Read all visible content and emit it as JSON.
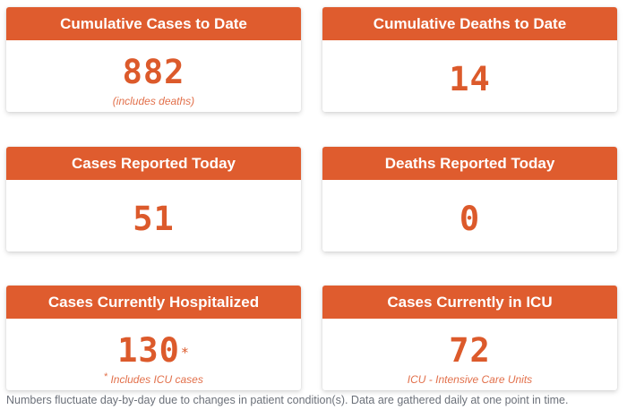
{
  "cards": [
    {
      "title": "Cumulative Cases to Date",
      "value": "882",
      "note": "(includes deaths)"
    },
    {
      "title": "Cumulative Deaths to Date",
      "value": "14"
    },
    {
      "title": "Cases Reported Today",
      "value": "51"
    },
    {
      "title": "Deaths Reported Today",
      "value": "0"
    },
    {
      "title": "Cases Currently Hospitalized",
      "value": "130",
      "value_marker": "*",
      "note_marker": "*",
      "note": "Includes ICU cases"
    },
    {
      "title": "Cases Currently in ICU",
      "value": "72",
      "note": "ICU - Intensive Care Units"
    }
  ],
  "footer": {
    "text": "Numbers fluctuate day-by-day due to changes in patient condition(s). Data are gathered daily at one point in time."
  },
  "colors": {
    "header_background": "#df5c2e",
    "value_text": "#dc5a2b",
    "note_text": "#e2704b",
    "footer_text": "#6b7079"
  }
}
